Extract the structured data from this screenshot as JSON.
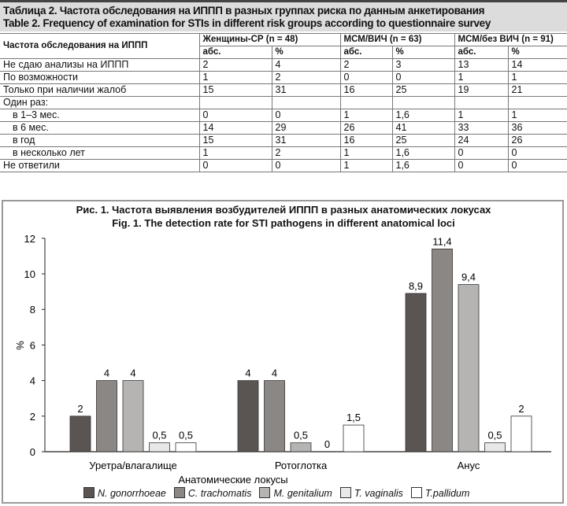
{
  "table": {
    "title_ru": "Таблица 2. Частота обследования на ИППП в разных группах риска по данным анкетирования",
    "title_en": "Table 2. Frequency of examination for STIs in different risk groups according to questionnaire survey",
    "row_header": "Частота обследования на ИППП",
    "groups": [
      "Женщины-СР (n = 48)",
      "МСМ/ВИЧ (n = 63)",
      "МСМ/без ВИЧ (n = 91)"
    ],
    "subheaders": [
      "абс.",
      "%"
    ],
    "rows": [
      {
        "label": "Не сдаю анализы на ИППП",
        "values": [
          "2",
          "4",
          "2",
          "3",
          "13",
          "14"
        ]
      },
      {
        "label": "По возможности",
        "values": [
          "1",
          "2",
          "0",
          "0",
          "1",
          "1"
        ]
      },
      {
        "label": "Только при наличии жалоб",
        "values": [
          "15",
          "31",
          "16",
          "25",
          "19",
          "21"
        ]
      },
      {
        "label": "Один раз:",
        "values": [
          "",
          "",
          "",
          "",
          "",
          ""
        ]
      },
      {
        "label": "в 1–3 мес.",
        "values": [
          "0",
          "0",
          "1",
          "1,6",
          "1",
          "1"
        ],
        "indent": true
      },
      {
        "label": "в 6 мес.",
        "values": [
          "14",
          "29",
          "26",
          "41",
          "33",
          "36"
        ],
        "indent": true
      },
      {
        "label": "в год",
        "values": [
          "15",
          "31",
          "16",
          "25",
          "24",
          "26"
        ],
        "indent": true
      },
      {
        "label": "в несколько лет",
        "values": [
          "1",
          "2",
          "1",
          "1,6",
          "0",
          "0"
        ],
        "indent": true
      },
      {
        "label": "Не ответили",
        "values": [
          "0",
          "0",
          "1",
          "1,6",
          "0",
          "0"
        ]
      }
    ]
  },
  "chart_data": {
    "type": "bar",
    "title": "Рис. 1. Частота выявления возбудителей ИППП в разных анатомических локусах",
    "subtitle": "Fig. 1. The detection rate for STI pathogens in different anatomical loci",
    "xlabel": "Анатомические локусы",
    "ylabel": "%",
    "ylim": [
      0,
      12
    ],
    "yticks": [
      "0",
      "2",
      "4",
      "6",
      "8",
      "10",
      "12"
    ],
    "categories": [
      "Уретра/влагалище",
      "Ротоглотка",
      "Анус"
    ],
    "series": [
      {
        "name": "N. gonorrhoeae",
        "color": "#5a5552",
        "values": [
          2,
          4,
          8.9
        ],
        "labels": [
          "2",
          "4",
          "8,9"
        ]
      },
      {
        "name": "C. trachomatis",
        "color": "#8a8784",
        "values": [
          4,
          4,
          11.4
        ],
        "labels": [
          "4",
          "4",
          "11,4"
        ]
      },
      {
        "name": "M. genitalium",
        "color": "#b6b4b2",
        "values": [
          4,
          0.5,
          9.4
        ],
        "labels": [
          "4",
          "0,5",
          "9,4"
        ]
      },
      {
        "name": "T. vaginalis",
        "color": "#e8e8e8",
        "values": [
          0.5,
          0,
          0.5
        ],
        "labels": [
          "0,5",
          "0",
          "0,5"
        ]
      },
      {
        "name": "T.pallidum",
        "color": "#ffffff",
        "values": [
          0.5,
          1.5,
          2
        ],
        "labels": [
          "0,5",
          "1,5",
          "2"
        ]
      }
    ],
    "legend": "bottom"
  }
}
